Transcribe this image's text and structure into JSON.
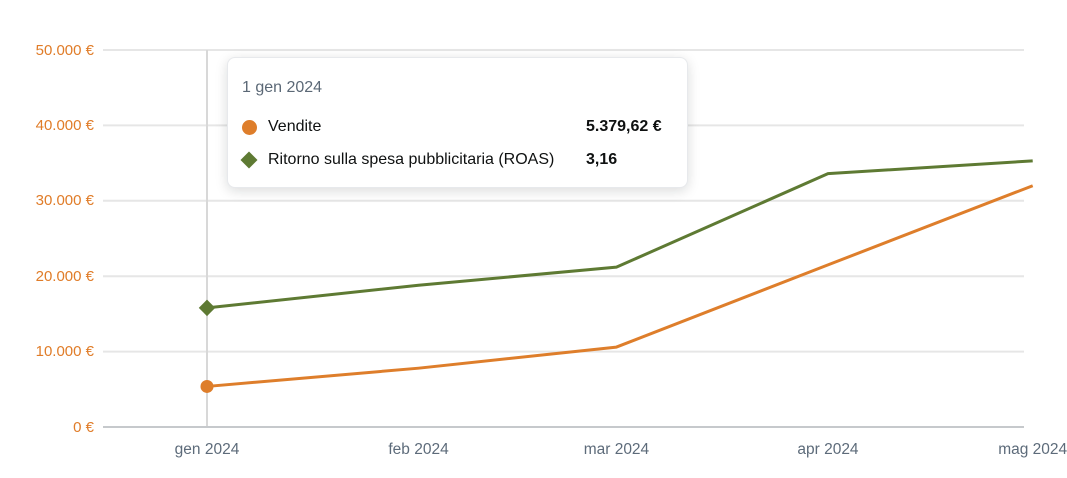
{
  "colors": {
    "vendite_orange": "#DE7E2B",
    "roas_green": "#5E7A33",
    "y_axis_label": "#E07C28",
    "x_axis_label": "#5D6B7A",
    "tooltip_header": "#5B6876",
    "text_dark": "#0f1111",
    "gridline": "#E6E6E6",
    "axis_line": "#C6C9CC",
    "crosshair": "#D8D8D8",
    "background": "#FFFFFF"
  },
  "tooltip": {
    "date": "1 gen 2024",
    "rows": [
      {
        "label": "Vendite",
        "value": "5.379,62 €"
      },
      {
        "label": "Ritorno sulla spesa pubblicitaria (ROAS)",
        "value": "3,16"
      }
    ]
  },
  "chart_data": {
    "type": "line",
    "x_tick_labels": [
      "gen 2024",
      "feb 2024",
      "mar 2024",
      "apr 2024",
      "mag 2024"
    ],
    "x_day_offsets": [
      0,
      31,
      60,
      91,
      121
    ],
    "y_ticks": [
      0,
      10000,
      20000,
      30000,
      40000,
      50000
    ],
    "y_tick_labels": [
      "0 €",
      "10.000 €",
      "20.000 €",
      "30.000 €",
      "40.000 €",
      "50.000 €"
    ],
    "ylim": [
      0,
      50000
    ],
    "grid": "horizontal",
    "legend_position": "tooltip",
    "series": [
      {
        "name": "Vendite",
        "marker": "circle",
        "color_key": "vendite_orange",
        "axis": "eur-left",
        "values_eur": [
          5379.62,
          7800,
          10600,
          21500,
          32000
        ]
      },
      {
        "name": "Ritorno sulla spesa pubblicitaria (ROAS)",
        "marker": "diamond",
        "color_key": "roas_green",
        "axis": "roas-hidden",
        "values_roas": [
          3.16,
          3.76,
          4.24,
          6.72,
          7.06
        ],
        "eur_equivalent_plot_scale": 5000
      }
    ],
    "highlighted_point": {
      "x_index": 0,
      "date_label": "1 gen 2024",
      "vendite_value_label": "5.379,62 €",
      "roas_value_label": "3,16"
    }
  }
}
